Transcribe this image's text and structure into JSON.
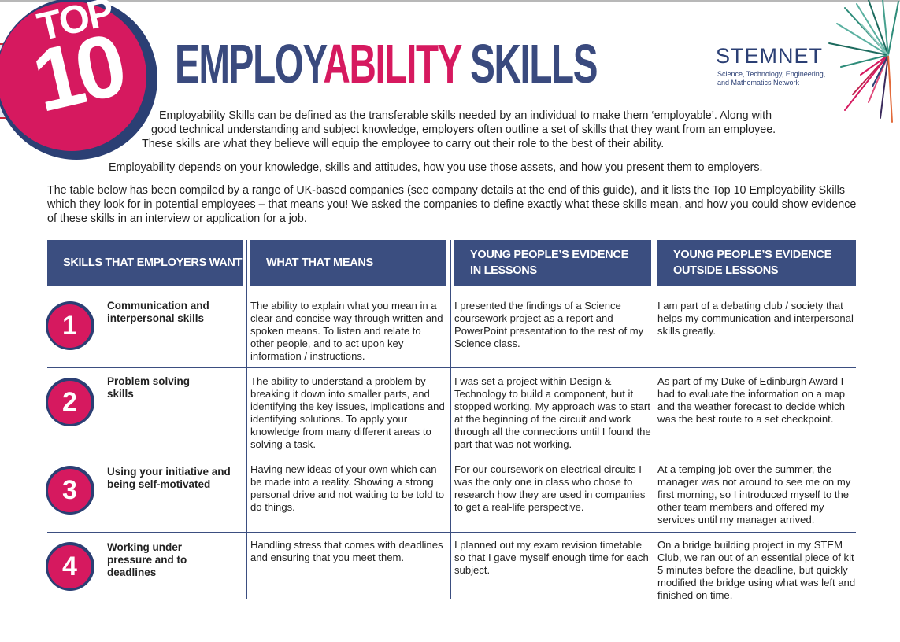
{
  "badge": {
    "top": "TOP",
    "number": "10"
  },
  "title": {
    "part1": "EMPLOY",
    "part2": "ABILITY",
    "part3": " SKILLS"
  },
  "logo": {
    "name": "STEMNET",
    "sub1": "Science, Technology, Engineering,",
    "sub2": "and Mathematics Network"
  },
  "intro": {
    "line1": "Employability Skills can be defined as the transferable skills needed by an individual to make them ‘employable’. Along with",
    "line2": "good technical understanding and subject knowledge, employers often outline a set of skills that they want from an employee.",
    "line3": "These skills are what they believe will equip the employee to carry out their role to the best of their ability.",
    "para2": "Employability depends on your knowledge, skills and attitudes, how you use those assets, and how you present them to employers.",
    "para3": "The table below has been compiled by a range of UK-based companies (see company details at the end of this guide), and it lists the Top 10 Employability Skills which they look for in potential employees – that means you!  We asked the companies to define exactly what these skills mean, and how you could show evidence of these skills in an interview or application for a job."
  },
  "table": {
    "headers": [
      "SKILLS THAT EMPLOYERS WANT",
      "WHAT THAT MEANS",
      "YOUNG PEOPLE’S EVIDENCE\nIN LESSONS",
      "YOUNG PEOPLE’S EVIDENCE\nOUTSIDE LESSONS"
    ],
    "rows": [
      {
        "number": "1",
        "skill": "Communication and interpersonal skills",
        "means": "The ability to explain what you mean in a clear and concise way through written and spoken means. To listen and relate to other people, and to act upon key information / instructions.",
        "in_lessons": "I presented the findings of a Science coursework project as a report and PowerPoint presentation to the rest of my Science class.",
        "outside_lessons": "I am part of a debating club / society that helps my communication and interpersonal skills greatly."
      },
      {
        "number": "2",
        "skill": "Problem solving skills",
        "means": "The ability to understand a problem by breaking it down into smaller parts, and identifying the key issues, implications and identifying solutions. To apply your knowledge from many different areas to solving a task.",
        "in_lessons": "I was set a project within Design & Technology to build a component, but it stopped working. My approach was to start at the beginning of the circuit and work through all the connections until I found the part that was not working.",
        "outside_lessons": "As part of my Duke of Edinburgh Award I had to evaluate the information on a map and the weather forecast to decide which was the best route to a set checkpoint."
      },
      {
        "number": "3",
        "skill": "Using your initiative and being self-motivated",
        "means": "Having new ideas of your own which can be made into a reality. Showing a strong personal drive and not waiting to be told to do things.",
        "in_lessons": "For our coursework on electrical circuits I was the only one in class who chose to research how they are used in companies to get a real-life perspective.",
        "outside_lessons": "At a temping job over the summer, the manager was not around to see me on my first morning, so I introduced myself to the other team members and offered my services until my manager arrived."
      },
      {
        "number": "4",
        "skill": "Working under pressure and to deadlines",
        "means": "Handling stress that comes with deadlines and ensuring that you meet them.",
        "in_lessons": "I planned out my exam revision timetable so that I gave myself enough time for each subject.",
        "outside_lessons": "On a bridge building project in my STEM Club, we ran out of an essential piece of kit 5 minutes before the deadline, but quickly modified the bridge using what was left and finished on time."
      }
    ]
  },
  "colors": {
    "navy": "#2b3f74",
    "header": "#3b4e80",
    "magenta": "#d6195f"
  }
}
